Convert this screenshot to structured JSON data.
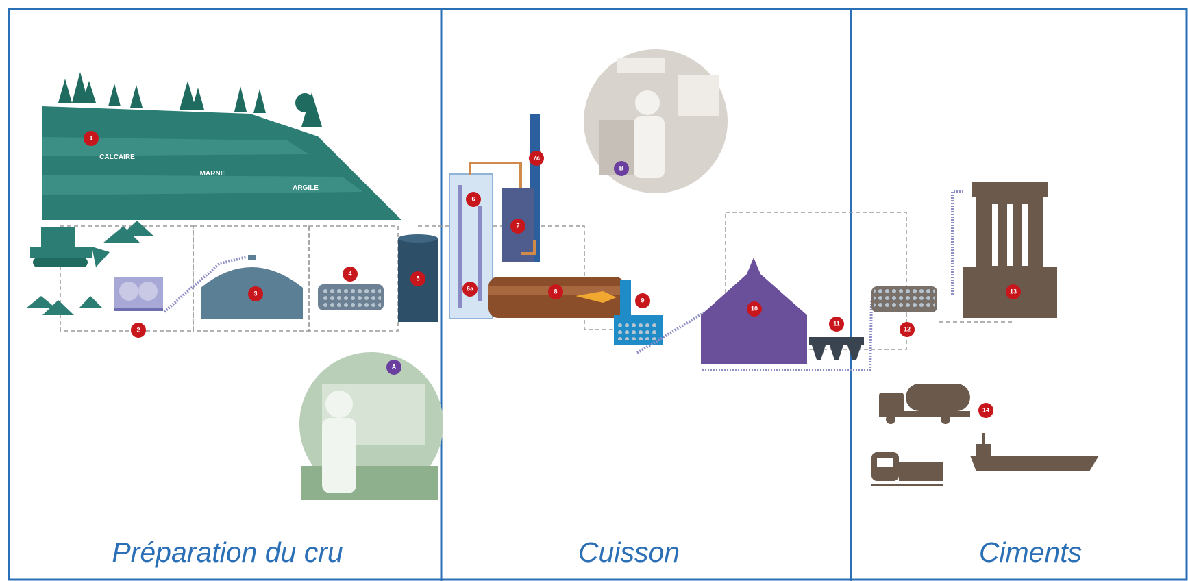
{
  "sections": [
    {
      "title": "Préparation du cru"
    },
    {
      "title": "Cuisson"
    },
    {
      "title": "Ciments"
    }
  ],
  "strata": [
    "CALCAIRE",
    "MARNE",
    "ARGILE"
  ],
  "markers": [
    "1",
    "2",
    "3",
    "4",
    "5",
    "6",
    "6a",
    "7",
    "7a",
    "8",
    "9",
    "10",
    "11",
    "12",
    "13",
    "14",
    "A",
    "B"
  ]
}
